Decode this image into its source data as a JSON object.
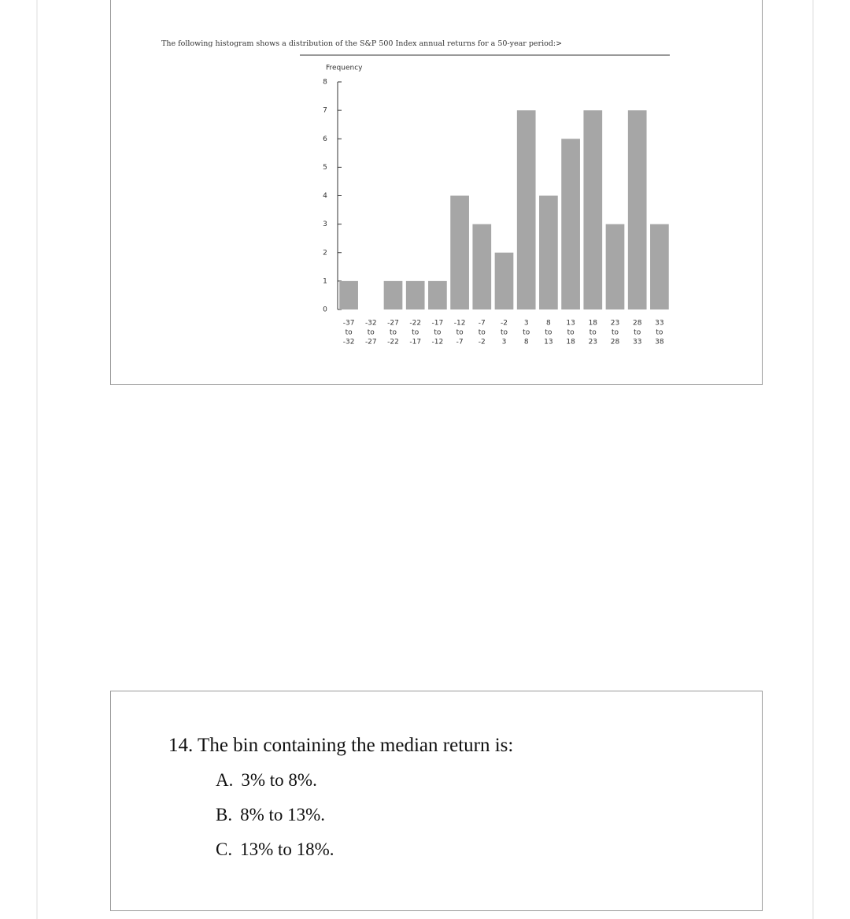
{
  "intro": "The following histogram shows a distribution of the S&P 500 Index annual returns for a 50-year period:>",
  "chart_data": {
    "type": "histogram",
    "y_label": "Frequency",
    "bins": [
      -37,
      -32,
      -27,
      -22,
      -17,
      -12,
      -7,
      -2,
      3,
      8,
      13,
      18,
      23,
      28,
      33,
      38
    ],
    "counts": [
      1,
      0,
      1,
      1,
      1,
      4,
      3,
      2,
      7,
      4,
      6,
      7,
      3,
      7,
      3
    ],
    "bin_connector": "to",
    "color": "#a6a6a6",
    "xlim": [
      -37,
      38
    ],
    "ylim": [
      0,
      8
    ],
    "yticks": [
      0,
      1,
      2,
      3,
      4,
      5,
      6,
      7,
      8
    ]
  },
  "question": {
    "text": "14. The bin containing the median return is:",
    "options": [
      {
        "letter": "A.",
        "text": "3% to 8%."
      },
      {
        "letter": "B.",
        "text": "8% to 13%."
      },
      {
        "letter": "C.",
        "text": "13% to 18%."
      }
    ]
  }
}
